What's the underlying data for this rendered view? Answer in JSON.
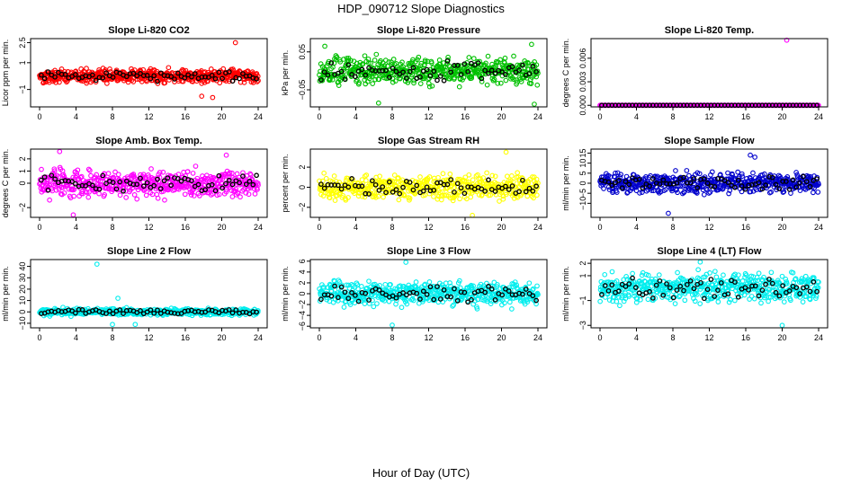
{
  "figure": {
    "title": "HDP_090712  Slope Diagnostics",
    "xlabel": "Hour of Day (UTC)"
  },
  "chart_data": [
    {
      "type": "scatter",
      "title": "Slope Li-820 CO2",
      "ylabel": "Licor ppm per min.",
      "color": "#ff0000",
      "xlim": [
        0,
        24
      ],
      "xticks": [
        0,
        4,
        8,
        12,
        16,
        20,
        24
      ],
      "ylim": [
        -2.3,
        2.8
      ],
      "yticks": [
        -1,
        1,
        2.5
      ],
      "ytick_labels": [
        "−1",
        "1",
        "2.5"
      ],
      "center": 0,
      "spread": 0.35,
      "outliers": [
        {
          "x": 21.5,
          "y": 2.5
        },
        {
          "x": 19,
          "y": -1.6
        },
        {
          "x": 17.8,
          "y": -1.5
        }
      ]
    },
    {
      "type": "scatter",
      "title": "Slope Li-820 Pressure",
      "ylabel": "kPa per min.",
      "color": "#00c000",
      "xlim": [
        0,
        24
      ],
      "xticks": [
        0,
        4,
        8,
        12,
        16,
        20,
        24
      ],
      "ylim": [
        -0.095,
        0.085
      ],
      "yticks": [
        -0.05,
        0.05
      ],
      "ytick_labels": [
        "−0.05",
        "0.05"
      ],
      "center": 0,
      "spread": 0.025,
      "outliers": [
        {
          "x": 23.3,
          "y": 0.07
        },
        {
          "x": 0.6,
          "y": 0.065
        },
        {
          "x": 6.5,
          "y": -0.085
        },
        {
          "x": 23.6,
          "y": -0.088
        }
      ]
    },
    {
      "type": "scatter",
      "title": "Slope Li-820 Temp.",
      "ylabel": "degrees C per min.",
      "color": "#ff00ff",
      "xlim": [
        0,
        24
      ],
      "xticks": [
        0,
        4,
        8,
        12,
        16,
        20,
        24
      ],
      "ylim": [
        -0.0002,
        0.0085
      ],
      "yticks": [
        0,
        0.003,
        0.006
      ],
      "ytick_labels": [
        "0.000",
        "0.003",
        "0.006"
      ],
      "center": 0,
      "spread": 0,
      "outliers": [
        {
          "x": 20.5,
          "y": 0.0083
        }
      ]
    },
    {
      "type": "scatter",
      "title": "Slope Amb. Box Temp.",
      "ylabel": "degrees C per min.",
      "color": "#ff00ff",
      "xlim": [
        0,
        24
      ],
      "xticks": [
        0,
        4,
        8,
        12,
        16,
        20,
        24
      ],
      "ylim": [
        -2.8,
        2.8
      ],
      "yticks": [
        -2,
        0,
        1,
        2
      ],
      "ytick_labels": [
        "−2",
        "0",
        "1",
        "2"
      ],
      "center": 0,
      "spread": 0.75,
      "outliers": [
        {
          "x": 2.2,
          "y": 2.6
        },
        {
          "x": 3.7,
          "y": -2.6
        },
        {
          "x": 20.5,
          "y": 2.3
        }
      ]
    },
    {
      "type": "scatter",
      "title": "Slope Gas Stream RH",
      "ylabel": "percent per min.",
      "color": "#ffff00",
      "xlim": [
        0,
        24
      ],
      "xticks": [
        0,
        4,
        8,
        12,
        16,
        20,
        24
      ],
      "ylim": [
        -3,
        3.8
      ],
      "yticks": [
        -2,
        0,
        2
      ],
      "ytick_labels": [
        "−2",
        "0",
        "2"
      ],
      "center": 0,
      "spread": 0.8,
      "outliers": [
        {
          "x": 20.5,
          "y": 3.5
        },
        {
          "x": 16.8,
          "y": -2.8
        }
      ]
    },
    {
      "type": "scatter",
      "title": "Slope Sample Flow",
      "ylabel": "ml/min per min.",
      "color": "#0000cc",
      "xlim": [
        0,
        24
      ],
      "xticks": [
        0,
        4,
        8,
        12,
        16,
        20,
        24
      ],
      "ylim": [
        -17,
        17
      ],
      "yticks": [
        -10,
        -5,
        0,
        5,
        10,
        15
      ],
      "ytick_labels": [
        "−10",
        "−5",
        "0",
        "5",
        "10",
        "15"
      ],
      "center": 0,
      "spread": 3.5,
      "outliers": [
        {
          "x": 7.5,
          "y": -15
        },
        {
          "x": 16.5,
          "y": 14
        },
        {
          "x": 17,
          "y": 13
        }
      ]
    },
    {
      "type": "scatter",
      "title": "Slope Line 2 Flow",
      "ylabel": "ml/min per min.",
      "color": "#00eeee",
      "xlim": [
        0,
        24
      ],
      "xticks": [
        0,
        4,
        8,
        12,
        16,
        20,
        24
      ],
      "ylim": [
        -14,
        46
      ],
      "yticks": [
        -10,
        0,
        10,
        20,
        30,
        40
      ],
      "ytick_labels": [
        "−10",
        "0",
        "10",
        "20",
        "30",
        "40"
      ],
      "center": 0,
      "spread": 2,
      "outliers": [
        {
          "x": 6.3,
          "y": 42
        },
        {
          "x": 8.6,
          "y": 12
        },
        {
          "x": 8,
          "y": -11
        },
        {
          "x": 10.5,
          "y": -11
        }
      ]
    },
    {
      "type": "scatter",
      "title": "Slope Line 3 Flow",
      "ylabel": "ml/min per min.",
      "color": "#00eeee",
      "xlim": [
        0,
        24
      ],
      "xticks": [
        0,
        4,
        8,
        12,
        16,
        20,
        24
      ],
      "ylim": [
        -6.3,
        6.3
      ],
      "yticks": [
        -6,
        -4,
        -2,
        0,
        2,
        4,
        6
      ],
      "ytick_labels": [
        "−6",
        "−4",
        "−2",
        "0",
        "2",
        "4",
        "6"
      ],
      "center": 0,
      "spread": 1.5,
      "outliers": [
        {
          "x": 9.5,
          "y": 5.8
        },
        {
          "x": 8,
          "y": -5.8
        }
      ]
    },
    {
      "type": "scatter",
      "title": "Slope Line 4 (LT) Flow",
      "ylabel": "ml/min per min.",
      "color": "#00eeee",
      "xlim": [
        0,
        24
      ],
      "xticks": [
        0,
        4,
        8,
        12,
        16,
        20,
        24
      ],
      "ylim": [
        -3.2,
        2.3
      ],
      "yticks": [
        -3,
        -1,
        1,
        2
      ],
      "ytick_labels": [
        "−3",
        "−1",
        "1",
        "2"
      ],
      "center": 0,
      "spread": 0.8,
      "outliers": [
        {
          "x": 20,
          "y": -3
        },
        {
          "x": 11,
          "y": 2.1
        }
      ]
    }
  ]
}
